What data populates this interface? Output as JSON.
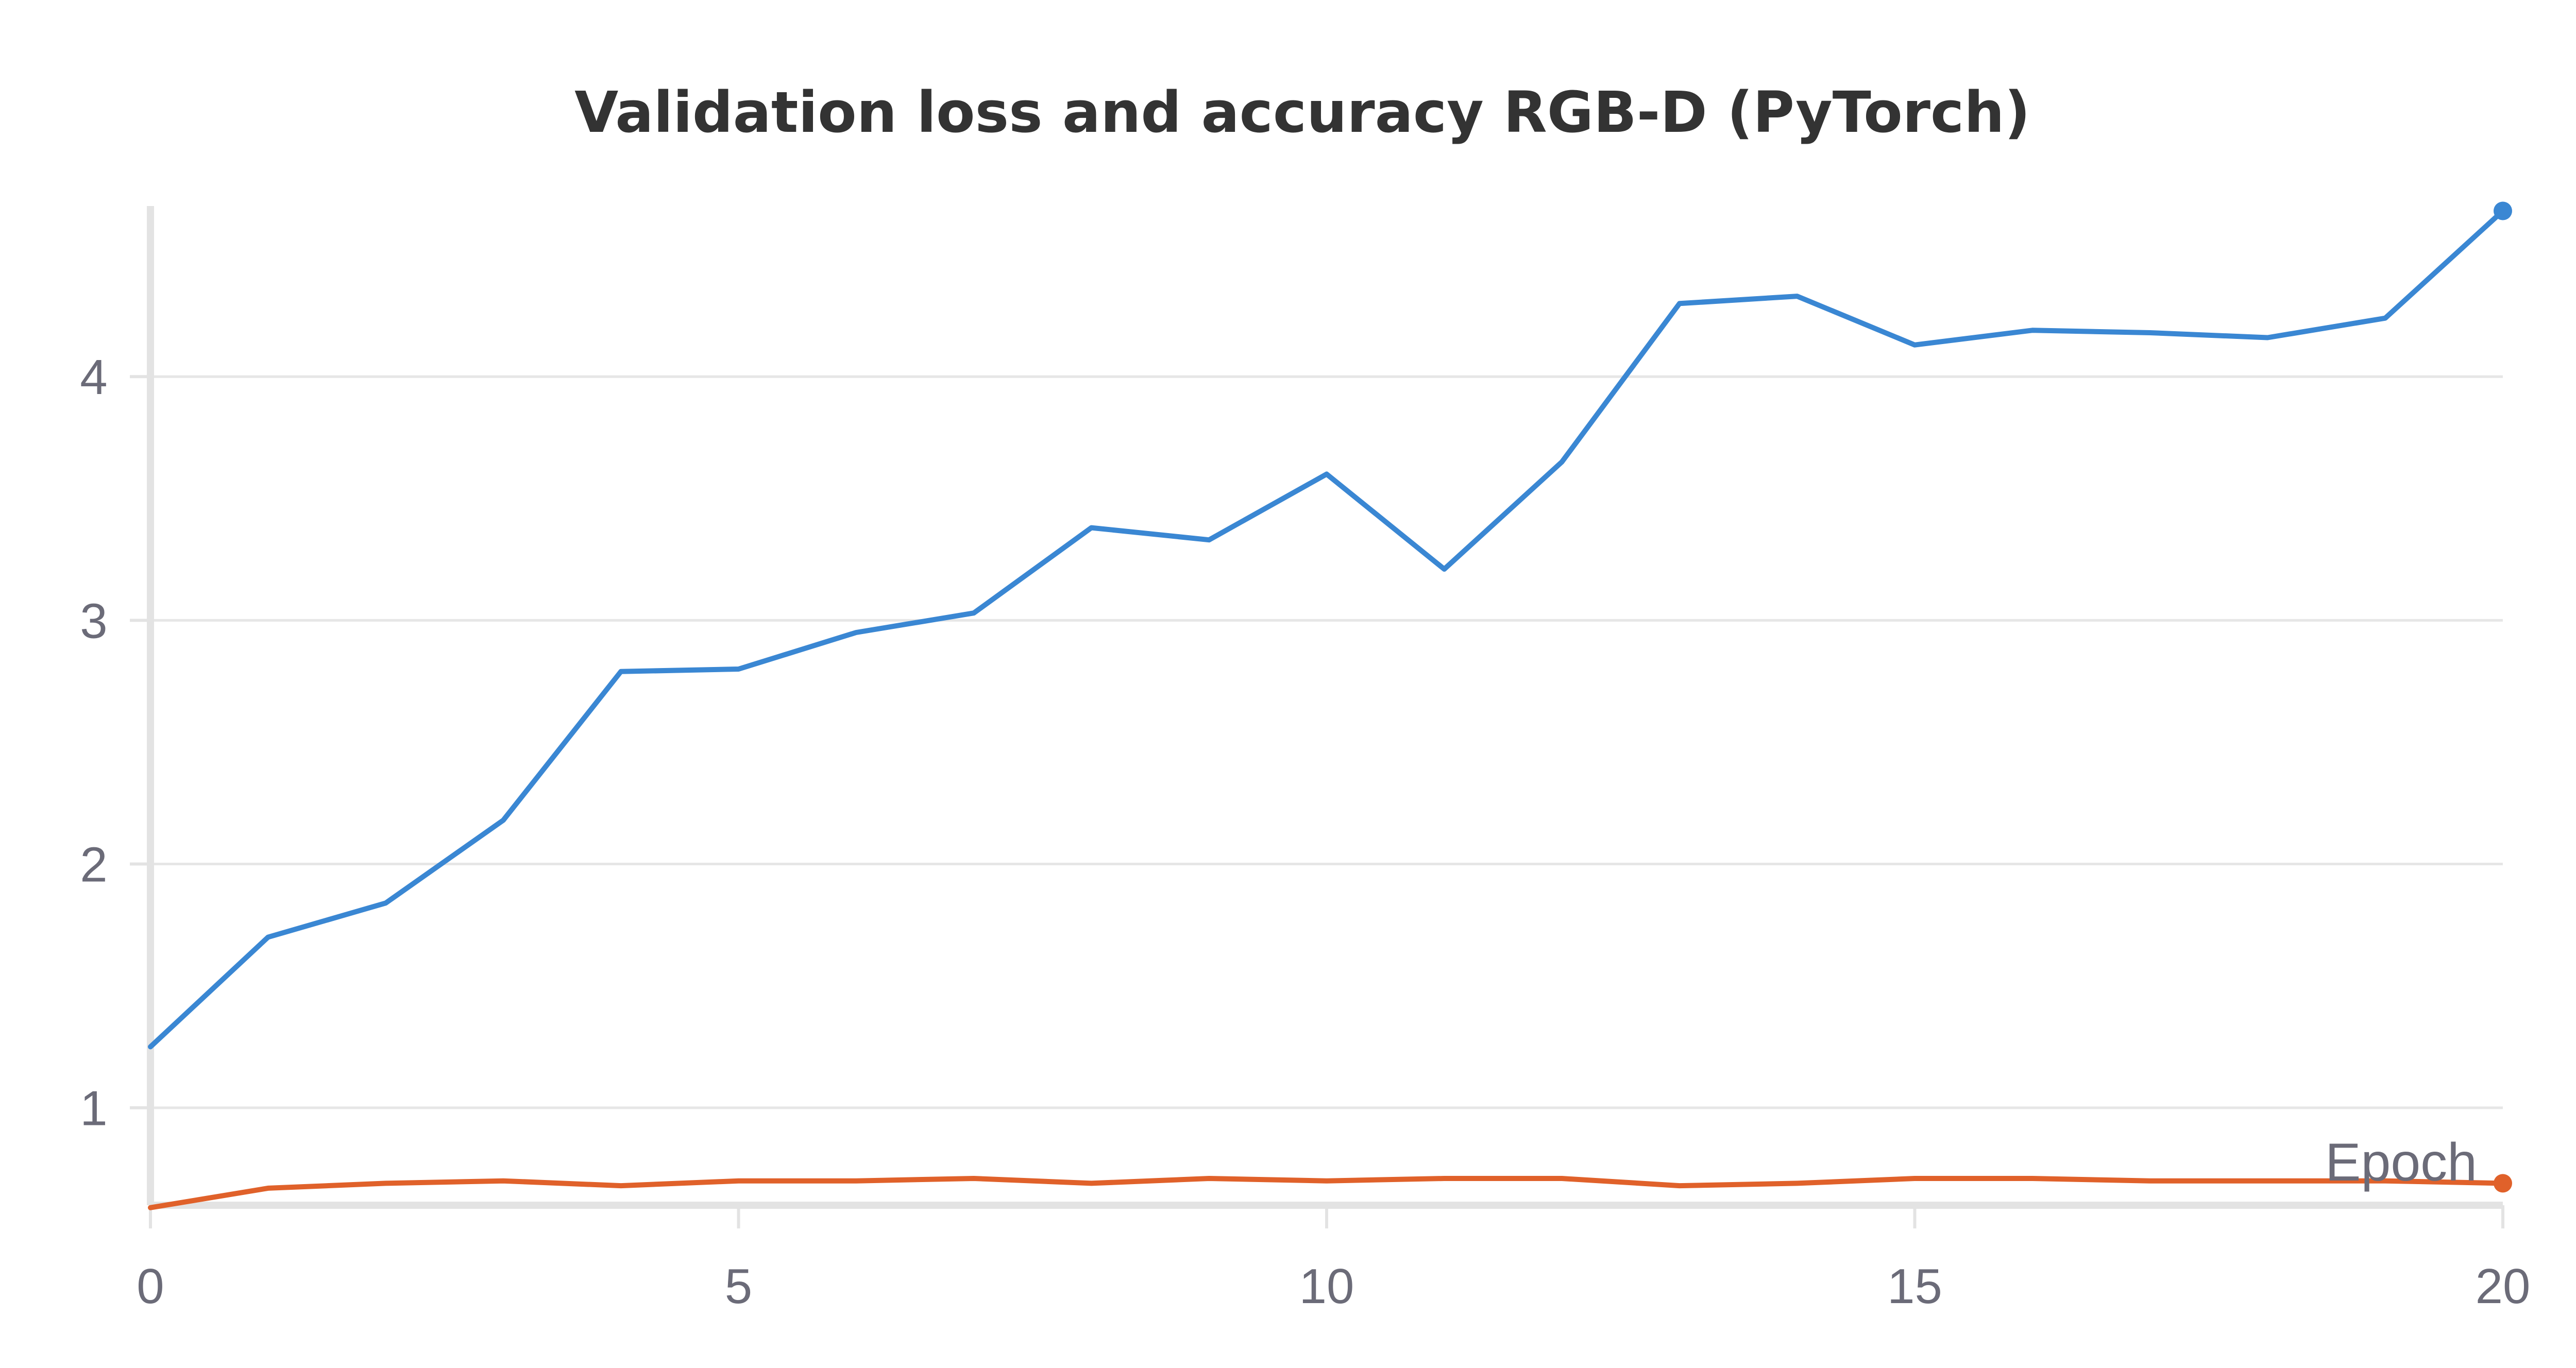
{
  "chart_data": {
    "type": "line",
    "title": "Validation loss and accuracy RGB-D (PyTorch)",
    "xlabel": "Epoch",
    "ylabel": "",
    "xlim": [
      0,
      20
    ],
    "ylim": [
      0.6,
      4.7
    ],
    "x_ticks": [
      "0",
      "5",
      "10",
      "15",
      "20"
    ],
    "y_ticks": [
      "1",
      "2",
      "3",
      "4"
    ],
    "grid": true,
    "x": [
      0,
      1,
      2,
      3,
      4,
      5,
      6,
      7,
      8,
      9,
      10,
      11,
      12,
      13,
      14,
      15,
      16,
      17,
      18,
      19,
      20
    ],
    "series": [
      {
        "color": "#3a87d3",
        "values": [
          1.25,
          1.7,
          1.84,
          2.18,
          2.79,
          2.8,
          2.95,
          3.03,
          3.38,
          3.33,
          3.6,
          3.21,
          3.65,
          4.3,
          4.33,
          4.13,
          4.19,
          4.18,
          4.16,
          4.24,
          4.68
        ]
      },
      {
        "color": "#e0612a",
        "values": [
          0.59,
          0.67,
          0.69,
          0.7,
          0.68,
          0.7,
          0.7,
          0.71,
          0.69,
          0.71,
          0.7,
          0.71,
          0.71,
          0.68,
          0.69,
          0.71,
          0.71,
          0.7,
          0.7,
          0.7,
          0.69
        ]
      }
    ]
  }
}
